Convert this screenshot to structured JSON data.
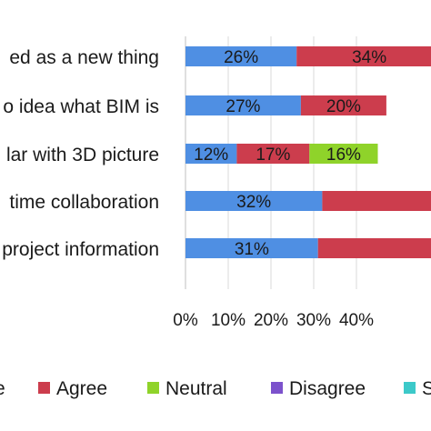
{
  "chart_data": {
    "type": "bar",
    "orientation": "horizontal",
    "stacked": true,
    "categories": [
      "ed as a new thing",
      "o idea  what BIM is",
      "lar with 3D picture",
      " time collaboration",
      "project information"
    ],
    "series": [
      {
        "name": "",
        "color": "#4f8fe3",
        "values": [
          26,
          27,
          12,
          32,
          31
        ]
      },
      {
        "name": "Agree",
        "color": "#cc3d4d",
        "values": [
          34,
          20,
          17,
          30,
          30
        ]
      },
      {
        "name": "Neutral",
        "color": "#8fd32a",
        "values": [
          0,
          0,
          16,
          0,
          0
        ]
      },
      {
        "name": "Disagree",
        "color": "#7c52cc",
        "values": [
          0,
          0,
          0,
          0,
          0
        ]
      },
      {
        "name": "",
        "color": "#3cc9c9",
        "values": [
          0,
          0,
          0,
          0,
          0
        ]
      }
    ],
    "data_labels": [
      [
        "26%",
        "34%",
        "",
        "",
        ""
      ],
      [
        "27%",
        "20%",
        "",
        "",
        ""
      ],
      [
        "12%",
        "17%",
        "16%",
        "",
        ""
      ],
      [
        "32%",
        "",
        "",
        "",
        ""
      ],
      [
        "31%",
        "",
        "",
        "",
        ""
      ]
    ],
    "x_ticks": [
      "0%",
      "10%",
      "20%",
      "30%",
      "40%"
    ],
    "xlim": [
      0,
      100
    ],
    "xlabel": "",
    "ylabel": "",
    "title": "",
    "grid": true,
    "legend_position": "bottom",
    "legend_labels": [
      "e",
      "Agree",
      "Neutral",
      "Disagree",
      "S"
    ]
  }
}
